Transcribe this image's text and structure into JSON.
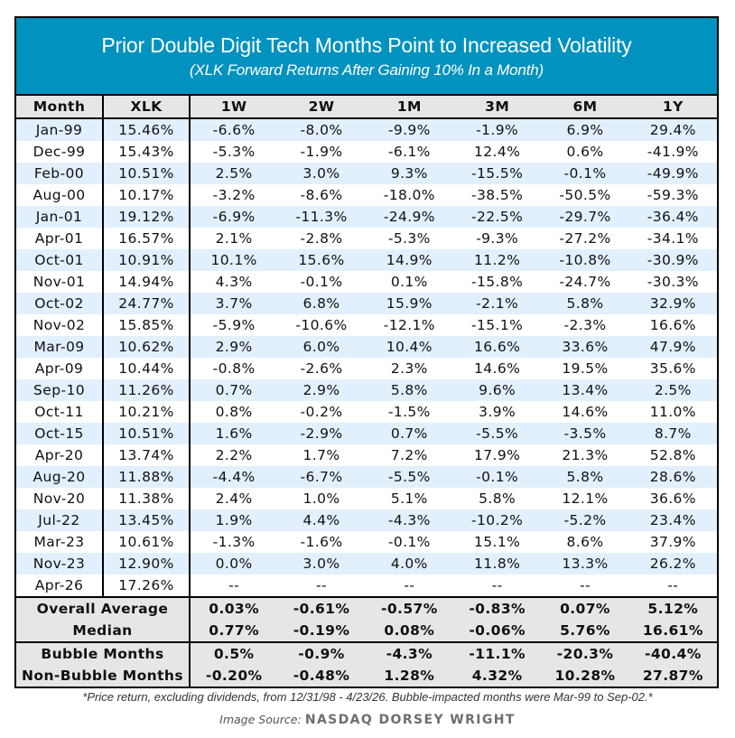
{
  "chart_data": {
    "type": "table",
    "title": "Prior Double Digit Tech Months Point to Increased Volatility",
    "subtitle": "(XLK Forward Returns After Gaining 10% In a Month)",
    "columns": [
      "Month",
      "XLK",
      "1W",
      "2W",
      "1M",
      "3M",
      "6M",
      "1Y"
    ],
    "rows": [
      [
        "Jan-99",
        "15.46%",
        "-6.6%",
        "-8.0%",
        "-9.9%",
        "-1.9%",
        "6.9%",
        "29.4%"
      ],
      [
        "Dec-99",
        "15.43%",
        "-5.3%",
        "-1.9%",
        "-6.1%",
        "12.4%",
        "0.6%",
        "-41.9%"
      ],
      [
        "Feb-00",
        "10.51%",
        "2.5%",
        "3.0%",
        "9.3%",
        "-15.5%",
        "-0.1%",
        "-49.9%"
      ],
      [
        "Aug-00",
        "10.17%",
        "-3.2%",
        "-8.6%",
        "-18.0%",
        "-38.5%",
        "-50.5%",
        "-59.3%"
      ],
      [
        "Jan-01",
        "19.12%",
        "-6.9%",
        "-11.3%",
        "-24.9%",
        "-22.5%",
        "-29.7%",
        "-36.4%"
      ],
      [
        "Apr-01",
        "16.57%",
        "2.1%",
        "-2.8%",
        "-5.3%",
        "-9.3%",
        "-27.2%",
        "-34.1%"
      ],
      [
        "Oct-01",
        "10.91%",
        "10.1%",
        "15.6%",
        "14.9%",
        "11.2%",
        "-10.8%",
        "-30.9%"
      ],
      [
        "Nov-01",
        "14.94%",
        "4.3%",
        "-0.1%",
        "0.1%",
        "-15.8%",
        "-24.7%",
        "-30.3%"
      ],
      [
        "Oct-02",
        "24.77%",
        "3.7%",
        "6.8%",
        "15.9%",
        "-2.1%",
        "5.8%",
        "32.9%"
      ],
      [
        "Nov-02",
        "15.85%",
        "-5.9%",
        "-10.6%",
        "-12.1%",
        "-15.1%",
        "-2.3%",
        "16.6%"
      ],
      [
        "Mar-09",
        "10.62%",
        "2.9%",
        "6.0%",
        "10.4%",
        "16.6%",
        "33.6%",
        "47.9%"
      ],
      [
        "Apr-09",
        "10.44%",
        "-0.8%",
        "-2.6%",
        "2.3%",
        "14.6%",
        "19.5%",
        "35.6%"
      ],
      [
        "Sep-10",
        "11.26%",
        "0.7%",
        "2.9%",
        "5.8%",
        "9.6%",
        "13.4%",
        "2.5%"
      ],
      [
        "Oct-11",
        "10.21%",
        "0.8%",
        "-0.2%",
        "-1.5%",
        "3.9%",
        "14.6%",
        "11.0%"
      ],
      [
        "Oct-15",
        "10.51%",
        "1.6%",
        "-2.9%",
        "0.7%",
        "-5.5%",
        "-3.5%",
        "8.7%"
      ],
      [
        "Apr-20",
        "13.74%",
        "2.2%",
        "1.7%",
        "7.2%",
        "17.9%",
        "21.3%",
        "52.8%"
      ],
      [
        "Aug-20",
        "11.88%",
        "-4.4%",
        "-6.7%",
        "-5.5%",
        "-0.1%",
        "5.8%",
        "28.6%"
      ],
      [
        "Nov-20",
        "11.38%",
        "2.4%",
        "1.0%",
        "5.1%",
        "5.8%",
        "12.1%",
        "36.6%"
      ],
      [
        "Jul-22",
        "13.45%",
        "1.9%",
        "4.4%",
        "-4.3%",
        "-10.2%",
        "-5.2%",
        "23.4%"
      ],
      [
        "Mar-23",
        "10.61%",
        "-1.3%",
        "-1.6%",
        "-0.1%",
        "15.1%",
        "8.6%",
        "37.9%"
      ],
      [
        "Nov-23",
        "12.90%",
        "0.0%",
        "3.0%",
        "4.0%",
        "11.8%",
        "13.3%",
        "26.2%"
      ],
      [
        "Apr-26",
        "17.26%",
        "--",
        "--",
        "--",
        "--",
        "--",
        "--"
      ]
    ],
    "summary": [
      {
        "label": "Overall Average",
        "values": [
          "0.03%",
          "-0.61%",
          "-0.57%",
          "-0.83%",
          "0.07%",
          "5.12%"
        ]
      },
      {
        "label": "Median",
        "values": [
          "0.77%",
          "-0.19%",
          "0.08%",
          "-0.06%",
          "5.76%",
          "16.61%"
        ]
      },
      {
        "label": "Bubble Months",
        "values": [
          "0.5%",
          "-0.9%",
          "-4.3%",
          "-11.1%",
          "-20.3%",
          "-40.4%"
        ]
      },
      {
        "label": "Non-Bubble Months",
        "values": [
          "-0.20%",
          "-0.48%",
          "1.28%",
          "4.32%",
          "10.28%",
          "27.87%"
        ]
      }
    ],
    "footnote": "*Price return, excluding dividends, from 12/31/98 - 4/23/26. Bubble-impacted months were  Mar-99 to Sep-02.*"
  },
  "source": {
    "label": "Image Source:",
    "brand": "NASDAQ DORSEY WRIGHT"
  },
  "colors": {
    "banner": "#0192bf",
    "row_alt": "#e2effc",
    "summary_bg": "#e6e6e6"
  }
}
